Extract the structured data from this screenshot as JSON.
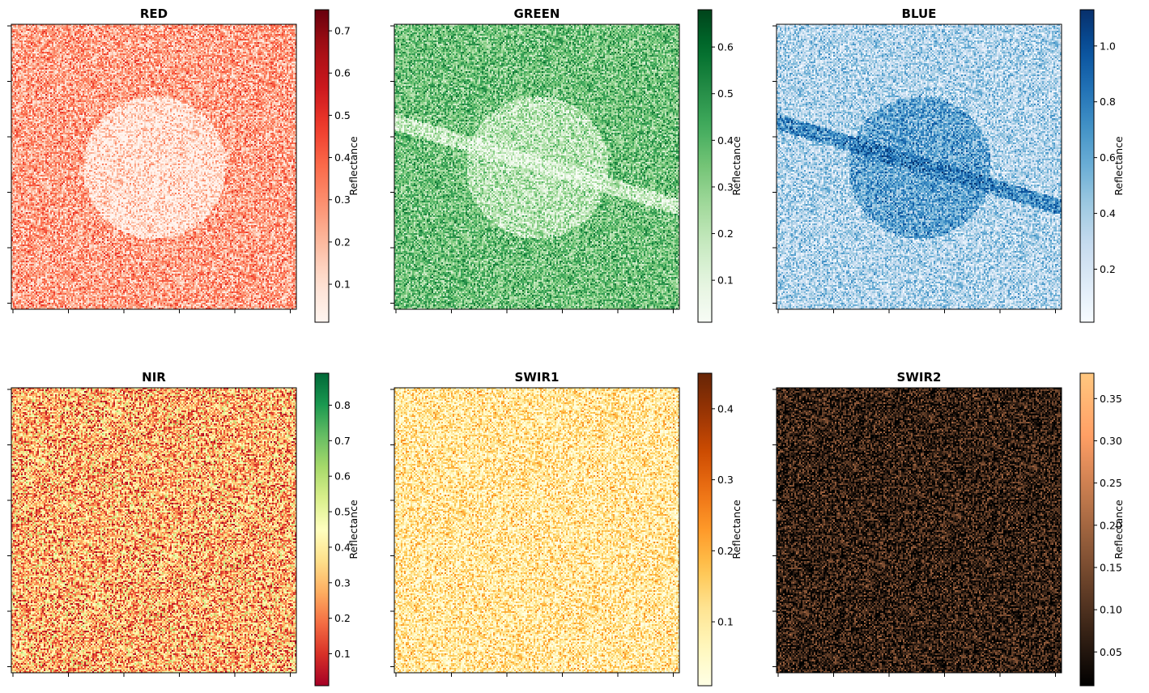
{
  "chart_data": [
    {
      "type": "heatmap",
      "title": "RED",
      "colormap": "Reds",
      "colorbar": {
        "label": "Reflectance",
        "range": [
          0.01,
          0.75
        ],
        "ticks": [
          "0.1",
          "0.2",
          "0.3",
          "0.4",
          "0.5",
          "0.6",
          "0.7"
        ]
      },
      "features": {
        "background_level": 0.25,
        "disk_level": 0.08,
        "stripe_level": null
      }
    },
    {
      "type": "heatmap",
      "title": "GREEN",
      "colormap": "Greens",
      "colorbar": {
        "label": "Reflectance",
        "range": [
          0.01,
          0.68
        ],
        "ticks": [
          "0.1",
          "0.2",
          "0.3",
          "0.4",
          "0.5",
          "0.6"
        ]
      },
      "features": {
        "background_level": 0.35,
        "disk_level": 0.2,
        "stripe_level": 0.16
      }
    },
    {
      "type": "heatmap",
      "title": "BLUE",
      "colormap": "Blues",
      "colorbar": {
        "label": "Reflectance",
        "range": [
          0.01,
          1.13
        ],
        "ticks": [
          "0.2",
          "0.4",
          "0.6",
          "0.8",
          "1.0"
        ]
      },
      "features": {
        "background_level": 0.35,
        "disk_level": 0.62,
        "stripe_level": 0.72
      }
    },
    {
      "type": "heatmap",
      "title": "NIR",
      "colormap": "RdYlGn",
      "colorbar": {
        "label": "Reflectance",
        "range": [
          0.01,
          0.89
        ],
        "ticks": [
          "0.1",
          "0.2",
          "0.3",
          "0.4",
          "0.5",
          "0.6",
          "0.7",
          "0.8"
        ]
      },
      "features": {
        "background_level": 0.3,
        "disk_level": null,
        "stripe_level": null
      }
    },
    {
      "type": "heatmap",
      "title": "SWIR1",
      "colormap": "YlOrBr",
      "colorbar": {
        "label": "Reflectance",
        "range": [
          0.01,
          0.45
        ],
        "ticks": [
          "0.1",
          "0.2",
          "0.3",
          "0.4"
        ]
      },
      "features": {
        "background_level": 0.1,
        "disk_level": null,
        "stripe_level": null
      }
    },
    {
      "type": "heatmap",
      "title": "SWIR2",
      "colormap": "copper",
      "colorbar": {
        "label": "Reflectance",
        "range": [
          0.01,
          0.38
        ],
        "ticks": [
          "0.05",
          "0.10",
          "0.15",
          "0.20",
          "0.25",
          "0.30",
          "0.35"
        ]
      },
      "features": {
        "background_level": 0.07,
        "disk_level": null,
        "stripe_level": null
      }
    }
  ]
}
